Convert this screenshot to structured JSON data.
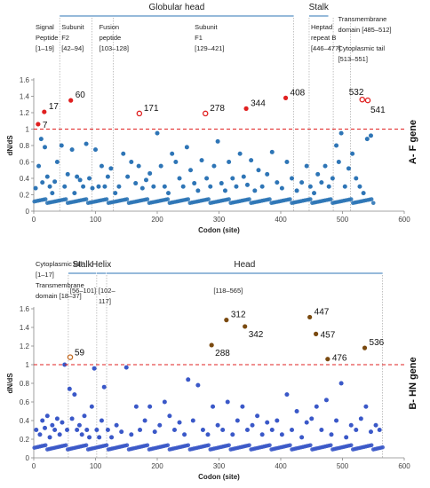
{
  "chart_data": [
    {
      "id": "A",
      "type": "scatter",
      "side_label": "A- F gene",
      "xlabel": "Codon (site)",
      "ylabel": "dN/dS",
      "xlim": [
        0,
        600
      ],
      "ylim": [
        0,
        1.6
      ],
      "xticks": [
        "0",
        "100",
        "200",
        "300",
        "400",
        "500",
        "600"
      ],
      "yticks": [
        "0",
        "0.2",
        "0.4",
        "0.6",
        "0.8",
        "1",
        "1.2",
        "1.4",
        "1.6"
      ],
      "threshold": 1,
      "colors": {
        "point": "#2e75b6",
        "selected_solid": "#e02020",
        "selected_open": "#e02020",
        "threshold": "#e02020"
      },
      "headers": [
        {
          "text": "Globular head",
          "from": 42,
          "to": 421
        },
        {
          "text": "Stalk",
          "from": 446,
          "to": 477
        }
      ],
      "regions": [
        {
          "lines": [
            "Signal",
            "Peptide",
            "[1–19]"
          ],
          "x": 0
        },
        {
          "lines": [
            "Subunit",
            "F2",
            "[42–94]"
          ],
          "x": 42
        },
        {
          "lines": [
            "Fusion",
            "peptide",
            "[103–128]"
          ],
          "x": 103
        },
        {
          "lines": [
            "Subunit",
            "F1",
            "[129–421]"
          ],
          "x": 275
        },
        {
          "lines": [
            "Heptad",
            "repeat B",
            "[446–477]"
          ],
          "x": 446
        },
        {
          "lines": [
            "Transmembrane",
            "domain [485–512]"
          ],
          "x": 490
        },
        {
          "lines": [
            "Cytoplasmic tail",
            "[513–551]"
          ],
          "x": 490
        }
      ],
      "boundaries": [
        0,
        42,
        94,
        129,
        421,
        446,
        485,
        513
      ],
      "selected_points": [
        {
          "x": 7,
          "y": 1.06,
          "label": "7",
          "marker": "solid"
        },
        {
          "x": 17,
          "y": 1.21,
          "label": "17",
          "marker": "solid"
        },
        {
          "x": 60,
          "y": 1.35,
          "label": "60",
          "marker": "solid"
        },
        {
          "x": 171,
          "y": 1.19,
          "label": "171",
          "marker": "open"
        },
        {
          "x": 278,
          "y": 1.19,
          "label": "278",
          "marker": "open"
        },
        {
          "x": 344,
          "y": 1.25,
          "label": "344",
          "marker": "solid"
        },
        {
          "x": 408,
          "y": 1.38,
          "label": "408",
          "marker": "solid"
        },
        {
          "x": 532,
          "y": 1.36,
          "label": "532",
          "marker": "open"
        },
        {
          "x": 541,
          "y": 1.35,
          "label": "541",
          "marker": "open"
        }
      ],
      "points": {
        "x": [
          3,
          8,
          12,
          14,
          18,
          22,
          26,
          30,
          34,
          38,
          45,
          50,
          55,
          62,
          66,
          70,
          75,
          80,
          85,
          90,
          95,
          100,
          105,
          110,
          115,
          120,
          125,
          132,
          138,
          145,
          152,
          158,
          165,
          170,
          176,
          182,
          188,
          194,
          200,
          206,
          212,
          218,
          224,
          230,
          236,
          242,
          248,
          254,
          260,
          266,
          272,
          280,
          286,
          292,
          298,
          304,
          310,
          316,
          322,
          328,
          334,
          340,
          346,
          352,
          358,
          364,
          370,
          378,
          386,
          394,
          402,
          410,
          418,
          426,
          434,
          442,
          448,
          454,
          460,
          466,
          472,
          478,
          484,
          490,
          494,
          498,
          504,
          510,
          516,
          522,
          528,
          534,
          540,
          546
        ],
        "y": [
          0.28,
          0.55,
          0.88,
          0.35,
          0.78,
          0.42,
          0.3,
          0.22,
          0.36,
          0.6,
          0.8,
          0.3,
          0.45,
          0.75,
          0.22,
          0.42,
          0.38,
          0.3,
          0.82,
          0.4,
          0.28,
          0.75,
          0.3,
          0.55,
          0.3,
          0.42,
          0.52,
          0.22,
          0.3,
          0.7,
          0.42,
          0.6,
          0.34,
          0.55,
          0.28,
          0.38,
          0.46,
          0.3,
          0.95,
          0.55,
          0.3,
          0.22,
          0.7,
          0.6,
          0.4,
          0.3,
          0.78,
          0.5,
          0.34,
          0.25,
          0.62,
          0.4,
          0.3,
          0.55,
          0.85,
          0.34,
          0.25,
          0.6,
          0.4,
          0.3,
          0.7,
          0.42,
          0.32,
          0.62,
          0.25,
          0.5,
          0.3,
          0.45,
          0.72,
          0.35,
          0.28,
          0.6,
          0.4,
          0.25,
          0.35,
          0.55,
          0.3,
          0.22,
          0.45,
          0.35,
          0.55,
          0.3,
          0.4,
          0.8,
          0.6,
          0.95,
          0.3,
          0.52,
          0.7,
          0.4,
          0.3,
          0.22,
          0.88,
          0.92
        ]
      },
      "baseline": {
        "from": 1,
        "to": 551,
        "y": 0.12
      }
    },
    {
      "id": "B",
      "type": "scatter",
      "side_label": "B- HN gene",
      "xlabel": "Codon (site)",
      "ylabel": "dN/dS",
      "xlim": [
        0,
        600
      ],
      "ylim": [
        0,
        1.6
      ],
      "xticks": [
        "0",
        "100",
        "200",
        "300",
        "400",
        "500",
        "600"
      ],
      "yticks": [
        "0",
        "0.2",
        "0.4",
        "0.6",
        "0.8",
        "1",
        "1.2",
        "1.4",
        "1.6"
      ],
      "threshold": 1,
      "colors": {
        "point": "#3a58c8",
        "selected_solid": "#7a4a10",
        "selected_open": "#c06820",
        "threshold": "#e02020"
      },
      "headers": [
        {
          "text": "Stalk",
          "from": 56,
          "to": 101
        },
        {
          "text": "Helix",
          "from": 102,
          "to": 117
        },
        {
          "text": "Head",
          "from": 118,
          "to": 565
        }
      ],
      "regions": [
        {
          "lines": [
            "Cytoplasmic tail",
            "[1–17]"
          ],
          "x": 0
        },
        {
          "lines": [
            "Transmembrane",
            "domain [18–37]"
          ],
          "x": 0
        },
        {
          "lines": [
            "[56–101]"
          ],
          "x": 56
        },
        {
          "lines": [
            "[102–",
            "117]"
          ],
          "x": 102
        },
        {
          "lines": [
            "[118–565]"
          ],
          "x": 320
        }
      ],
      "boundaries": [
        0,
        56,
        102,
        118,
        565
      ],
      "selected_points": [
        {
          "x": 59,
          "y": 1.08,
          "label": "59",
          "marker": "open"
        },
        {
          "x": 288,
          "y": 1.21,
          "label": "288",
          "marker": "solid"
        },
        {
          "x": 312,
          "y": 1.48,
          "label": "312",
          "marker": "solid"
        },
        {
          "x": 342,
          "y": 1.41,
          "label": "342",
          "marker": "solid"
        },
        {
          "x": 447,
          "y": 1.51,
          "label": "447",
          "marker": "solid"
        },
        {
          "x": 457,
          "y": 1.33,
          "label": "457",
          "marker": "solid"
        },
        {
          "x": 476,
          "y": 1.06,
          "label": "476",
          "marker": "solid"
        },
        {
          "x": 536,
          "y": 1.18,
          "label": "536",
          "marker": "solid"
        }
      ],
      "points": {
        "x": [
          4,
          10,
          14,
          18,
          22,
          26,
          30,
          34,
          38,
          42,
          46,
          50,
          54,
          58,
          62,
          66,
          70,
          74,
          78,
          82,
          86,
          90,
          94,
          98,
          102,
          106,
          110,
          114,
          120,
          126,
          134,
          142,
          150,
          158,
          166,
          172,
          180,
          188,
          196,
          204,
          212,
          220,
          228,
          236,
          244,
          250,
          258,
          266,
          274,
          282,
          290,
          298,
          306,
          314,
          322,
          330,
          338,
          346,
          354,
          362,
          370,
          378,
          386,
          394,
          402,
          410,
          418,
          426,
          434,
          442,
          450,
          458,
          466,
          474,
          482,
          490,
          498,
          506,
          514,
          522,
          530,
          538,
          546,
          554,
          560
        ],
        "y": [
          0.3,
          0.25,
          0.4,
          0.32,
          0.45,
          0.22,
          0.35,
          0.3,
          0.42,
          0.25,
          0.38,
          1.0,
          0.3,
          0.74,
          0.42,
          0.68,
          0.3,
          0.35,
          0.25,
          0.45,
          0.3,
          0.22,
          0.55,
          0.96,
          0.3,
          0.22,
          0.4,
          0.76,
          0.3,
          0.22,
          0.35,
          0.28,
          0.97,
          0.25,
          0.55,
          0.3,
          0.4,
          0.55,
          0.28,
          0.35,
          0.6,
          0.45,
          0.3,
          0.38,
          0.25,
          0.84,
          0.4,
          0.78,
          0.3,
          0.25,
          0.55,
          0.35,
          0.3,
          0.6,
          0.25,
          0.4,
          0.55,
          0.3,
          0.35,
          0.45,
          0.25,
          0.38,
          0.3,
          0.4,
          0.25,
          0.68,
          0.3,
          0.5,
          0.22,
          0.38,
          0.42,
          0.55,
          0.3,
          0.62,
          0.25,
          0.4,
          0.8,
          0.22,
          0.35,
          0.3,
          0.42,
          0.55,
          0.28,
          0.35,
          0.3
        ],
        "y_extra": []
      },
      "baseline": {
        "from": 1,
        "to": 565,
        "y": 0.11
      }
    }
  ]
}
